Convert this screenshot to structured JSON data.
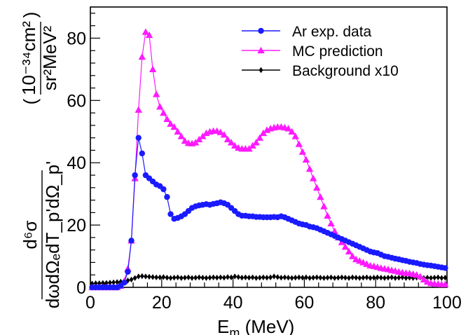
{
  "chart_data": {
    "type": "line",
    "title": "",
    "xlabel": "E_m (MeV)",
    "xlabel_main": "E",
    "xlabel_sub": "m",
    "xlabel_rest": " (MeV)",
    "ylabel_top": "d⁶σ",
    "ylabel_bottom": "dωdΩₑdT_p'dΩ_p'",
    "ylabel_units_top": "10⁻³⁴cm²",
    "ylabel_units_bottom": "sr²MeV²",
    "xlim": [
      0,
      100
    ],
    "ylim": [
      0,
      90
    ],
    "x_ticks": [
      0,
      20,
      40,
      60,
      80,
      100
    ],
    "y_ticks": [
      0,
      20,
      40,
      60,
      80
    ],
    "grid": false,
    "legend_position": "top-right",
    "series": [
      {
        "name": "Ar exp. data",
        "color": "#1a1aff",
        "marker": "circle",
        "x": [
          0.5,
          1.5,
          2.5,
          3.5,
          4.5,
          5.5,
          6.5,
          7.5,
          8.5,
          9.5,
          10.5,
          11.5,
          12.5,
          13.5,
          14.5,
          15.5,
          16.5,
          17.5,
          18.5,
          19.5,
          20.5,
          21.5,
          22.5,
          23.5,
          24.5,
          25.5,
          26.5,
          27.5,
          28.5,
          29.5,
          30.5,
          31.5,
          32.5,
          33.5,
          34.5,
          35.5,
          36.5,
          37.5,
          38.5,
          39.5,
          40.5,
          41.5,
          42.5,
          43.5,
          44.5,
          45.5,
          46.5,
          47.5,
          48.5,
          49.5,
          50.5,
          51.5,
          52.5,
          53.5,
          54.5,
          55.5,
          56.5,
          57.5,
          58.5,
          59.5,
          60.5,
          61.5,
          62.5,
          63.5,
          64.5,
          65.5,
          66.5,
          67.5,
          68.5,
          69.5,
          70.5,
          71.5,
          72.5,
          73.5,
          74.5,
          75.5,
          76.5,
          77.5,
          78.5,
          79.5,
          80.5,
          81.5,
          82.5,
          83.5,
          84.5,
          85.5,
          86.5,
          87.5,
          88.5,
          89.5,
          90.5,
          91.5,
          92.5,
          93.5,
          94.5,
          95.5,
          96.5,
          97.5,
          98.5,
          99.5
        ],
        "values": [
          0,
          0,
          0,
          0,
          0,
          0,
          0,
          0,
          0.5,
          1.5,
          5,
          15,
          36,
          48,
          43,
          36,
          35,
          34,
          33,
          32.5,
          31.5,
          29,
          23.5,
          22,
          22.3,
          22.8,
          23.5,
          24.5,
          25.5,
          26,
          26.3,
          26.5,
          26.7,
          26.5,
          26.8,
          27,
          27.3,
          27,
          26.5,
          25.5,
          24.5,
          23.5,
          23,
          23,
          22.8,
          22.8,
          22.6,
          22.6,
          22.5,
          22.5,
          22.5,
          22.6,
          22.5,
          22.8,
          22.5,
          22,
          21.5,
          21,
          20.5,
          20.2,
          20,
          19.5,
          19.3,
          19,
          18.5,
          18,
          17.5,
          17,
          16.5,
          16,
          15.5,
          15,
          14.5,
          14,
          13.5,
          13,
          12.5,
          12,
          11.5,
          11.2,
          11,
          10.5,
          10,
          9.8,
          9.5,
          9.2,
          9,
          8.7,
          8.5,
          8.2,
          8,
          7.8,
          7.5,
          7.3,
          7.1,
          7,
          6.8,
          6.6,
          6.4,
          6.2
        ]
      },
      {
        "name": "MC prediction",
        "color": "#ff1aff",
        "marker": "triangle",
        "x": [
          0.5,
          1.5,
          2.5,
          3.5,
          4.5,
          5.5,
          6.5,
          7.5,
          8.5,
          9.5,
          10.5,
          11.5,
          12.5,
          13.5,
          14.5,
          15.5,
          16.5,
          17.5,
          18.5,
          19.5,
          20.5,
          21.5,
          22.5,
          23.5,
          24.5,
          25.5,
          26.5,
          27.5,
          28.5,
          29.5,
          30.5,
          31.5,
          32.5,
          33.5,
          34.5,
          35.5,
          36.5,
          37.5,
          38.5,
          39.5,
          40.5,
          41.5,
          42.5,
          43.5,
          44.5,
          45.5,
          46.5,
          47.5,
          48.5,
          49.5,
          50.5,
          51.5,
          52.5,
          53.5,
          54.5,
          55.5,
          56.5,
          57.5,
          58.5,
          59.5,
          60.5,
          61.5,
          62.5,
          63.5,
          64.5,
          65.5,
          66.5,
          67.5,
          68.5,
          69.5,
          70.5,
          71.5,
          72.5,
          73.5,
          74.5,
          75.5,
          76.5,
          77.5,
          78.5,
          79.5,
          80.5,
          81.5,
          82.5,
          83.5,
          84.5,
          85.5,
          86.5,
          87.5,
          88.5,
          89.5,
          90.5,
          91.5,
          92.5,
          93.5,
          94.5,
          95.5,
          96.5,
          97.5,
          98.5,
          99.5
        ],
        "values": [
          0,
          0,
          0,
          0,
          0,
          0,
          0,
          0,
          0.5,
          2,
          6,
          15,
          35,
          57,
          74,
          82,
          81,
          70,
          62,
          58,
          56,
          54,
          52.5,
          51.5,
          50,
          48.5,
          47,
          46.3,
          46.2,
          46.5,
          47.5,
          48.5,
          49.5,
          50,
          50.2,
          50.2,
          49.8,
          49,
          47.5,
          46.5,
          45.5,
          44.8,
          44.5,
          44.5,
          44.5,
          45.5,
          46.5,
          48,
          49.5,
          50.5,
          51,
          51.3,
          51.5,
          51.5,
          51.3,
          51,
          50,
          48.5,
          46,
          43.5,
          41,
          38,
          35,
          32,
          29,
          26,
          23,
          20.5,
          18,
          16,
          14.5,
          13,
          11.5,
          10,
          9,
          8.5,
          8,
          7.5,
          7,
          6.8,
          6.5,
          6.2,
          6,
          5.8,
          5.5,
          5.3,
          5,
          4.8,
          4.6,
          4.5,
          4.3,
          4,
          3.5,
          2.5,
          1.8,
          1.3,
          1.2,
          1.1,
          1,
          1
        ]
      },
      {
        "name": "Background x10",
        "color": "#000000",
        "marker": "diamond",
        "x": [
          0.5,
          1.5,
          2.5,
          3.5,
          4.5,
          5.5,
          6.5,
          7.5,
          8.5,
          9.5,
          10.5,
          11.5,
          12.5,
          13.5,
          14.5,
          15.5,
          16.5,
          17.5,
          18.5,
          19.5,
          20.5,
          21.5,
          22.5,
          23.5,
          24.5,
          25.5,
          26.5,
          27.5,
          28.5,
          29.5,
          30.5,
          31.5,
          32.5,
          33.5,
          34.5,
          35.5,
          36.5,
          37.5,
          38.5,
          39.5,
          40.5,
          41.5,
          42.5,
          43.5,
          44.5,
          45.5,
          46.5,
          47.5,
          48.5,
          49.5,
          50.5,
          51.5,
          52.5,
          53.5,
          54.5,
          55.5,
          56.5,
          57.5,
          58.5,
          59.5,
          60.5,
          61.5,
          62.5,
          63.5,
          64.5,
          65.5,
          66.5,
          67.5,
          68.5,
          69.5,
          70.5,
          71.5,
          72.5,
          73.5,
          74.5,
          75.5,
          76.5,
          77.5,
          78.5,
          79.5,
          80.5,
          81.5,
          82.5,
          83.5,
          84.5,
          85.5,
          86.5,
          87.5,
          88.5,
          89.5,
          90.5,
          91.5,
          92.5,
          93.5,
          94.5,
          95.5,
          96.5,
          97.5,
          98.5,
          99.5
        ],
        "values": [
          1.2,
          1.3,
          1.3,
          1.4,
          1.4,
          1.5,
          1.6,
          1.7,
          1.8,
          2,
          2.2,
          2.5,
          3,
          3.5,
          3.6,
          3.5,
          3.4,
          3.3,
          3.2,
          3.2,
          3.3,
          3.1,
          3,
          3.1,
          3.2,
          3,
          3.1,
          3.2,
          3,
          3.1,
          3.2,
          3.1,
          3,
          3.1,
          3.2,
          3.1,
          3.2,
          3.1,
          3.3,
          3.2,
          3.5,
          3.3,
          3.1,
          3.2,
          3.1,
          3.2,
          3,
          3.1,
          3.2,
          3.1,
          3.2,
          3.5,
          3.3,
          3.1,
          3.2,
          3.1,
          3,
          3.1,
          3.2,
          3.1,
          3.2,
          3,
          3.1,
          3.2,
          3.1,
          3,
          3.1,
          3.2,
          3,
          3.1,
          3.2,
          3.1,
          3,
          3.2,
          3.1,
          3,
          3.1,
          3.2,
          3,
          3.1,
          3.2,
          3.1,
          3,
          3.1,
          3.2,
          3,
          3.1,
          3.2,
          3,
          3.1,
          3,
          3.1,
          3.2,
          3,
          3.1,
          3,
          3.1,
          3.2,
          3,
          3.1
        ]
      }
    ]
  }
}
